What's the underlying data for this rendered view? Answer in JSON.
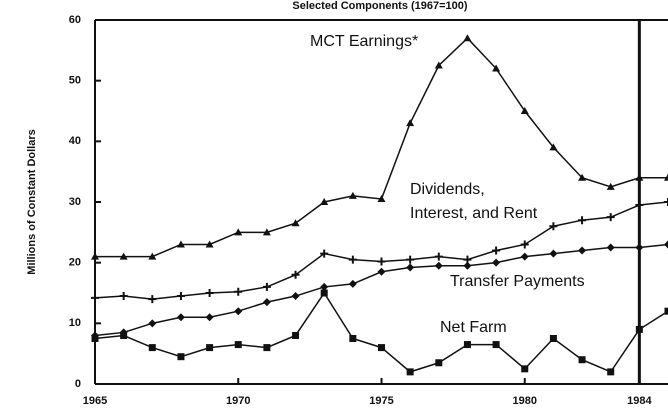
{
  "chart_data": {
    "type": "line",
    "title": "Selected Components (1967=100)",
    "y_label": "Millions of Constant Dollars",
    "x": [
      1965,
      1966,
      1967,
      1968,
      1969,
      1970,
      1971,
      1972,
      1973,
      1974,
      1975,
      1976,
      1977,
      1978,
      1979,
      1980,
      1981,
      1982,
      1983,
      1984,
      1985
    ],
    "xlim": [
      1965,
      1985
    ],
    "xticks": [
      1965,
      1970,
      1975,
      1980,
      1984
    ],
    "ylim": [
      0,
      60
    ],
    "yticks": [
      0,
      10,
      20,
      30,
      40,
      50,
      60
    ],
    "series": [
      {
        "name": "MCT Earnings*",
        "color": "#111",
        "marker": "triangle",
        "values": [
          21,
          21,
          21,
          23,
          23,
          25,
          25,
          26.5,
          30,
          31,
          30.5,
          43,
          52.5,
          57,
          52,
          45,
          39,
          34,
          32.5,
          34,
          34
        ]
      },
      {
        "name": "Dividends, Interest, and Rent",
        "color": "#111",
        "marker": "cross",
        "values": [
          14.2,
          14.5,
          14,
          14.5,
          15,
          15.2,
          16,
          18,
          21.5,
          20.5,
          20.2,
          20.5,
          21,
          20.5,
          22,
          23,
          26,
          27,
          27.5,
          29.5,
          30
        ]
      },
      {
        "name": "Transfer Payments",
        "color": "#111",
        "marker": "diamond",
        "values": [
          8,
          8.5,
          10,
          11,
          11,
          12,
          13.5,
          14.5,
          16,
          16.5,
          18.5,
          19.2,
          19.5,
          19.5,
          20,
          21,
          21.5,
          22,
          22.5,
          22.5,
          23
        ]
      },
      {
        "name": "Net Farm",
        "color": "#111",
        "marker": "square",
        "values": [
          7.5,
          8,
          6,
          4.5,
          6,
          6.5,
          6,
          8,
          15,
          7.5,
          6,
          2,
          3.5,
          6.5,
          6.5,
          2.5,
          7.5,
          4,
          2,
          9,
          12
        ]
      }
    ]
  }
}
